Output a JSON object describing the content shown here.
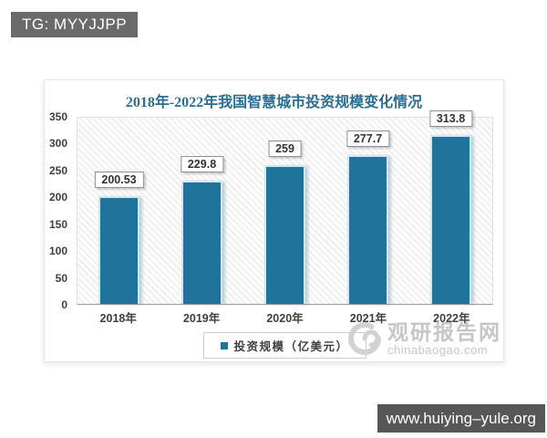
{
  "page": {
    "top_badge": "TG: MYYJJPP",
    "bottom_badge": "www.huiying–yule.org"
  },
  "watermark": {
    "name": "观研报告网",
    "domain": "chinabaogao.com"
  },
  "chart_data": {
    "type": "bar",
    "title": "2018年-2022年我国智慧城市投资规模变化情况",
    "categories": [
      "2018年",
      "2019年",
      "2020年",
      "2021年",
      "2022年"
    ],
    "values": [
      200.53,
      229.8,
      259,
      277.7,
      313.8
    ],
    "value_labels": [
      "200.53",
      "229.8",
      "259",
      "277.7",
      "313.8"
    ],
    "legend": "投资规模（亿美元）",
    "xlabel": "",
    "ylabel": "",
    "ylim": [
      0,
      350
    ],
    "yticks": [
      0,
      50,
      100,
      150,
      200,
      250,
      300,
      350
    ],
    "grid": false,
    "legend_position": "bottom",
    "bar_color": "#20749c",
    "title_color": "#2b6e91",
    "hatch_background": true
  }
}
